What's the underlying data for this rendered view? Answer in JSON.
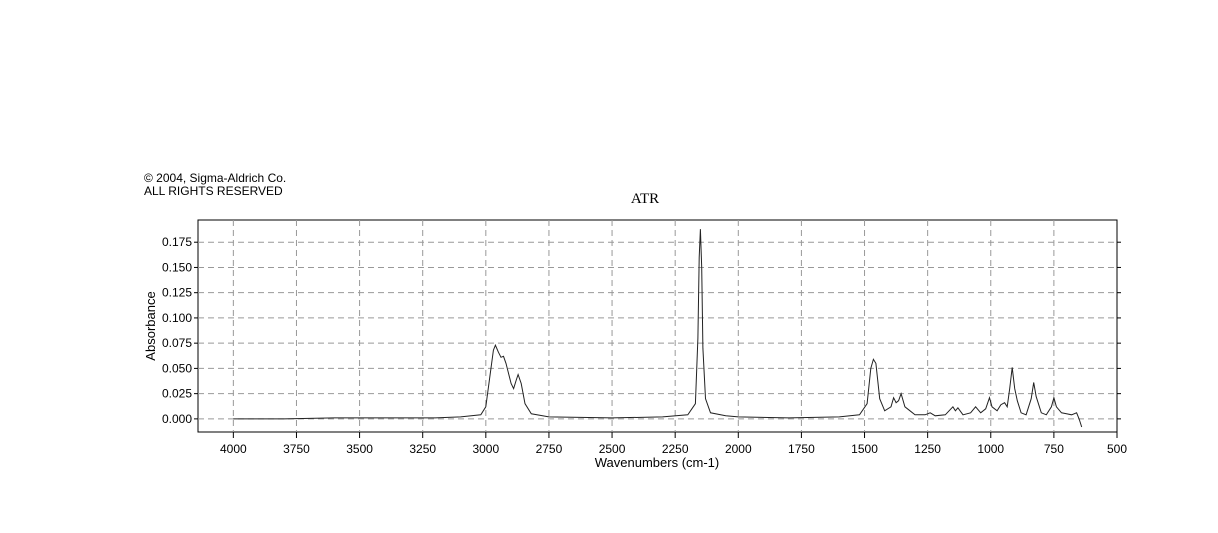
{
  "chart_data": {
    "type": "line",
    "title": "ATR",
    "copyright": [
      "© 2004, Sigma-Aldrich Co.",
      "ALL RIGHTS RESERVED"
    ],
    "xlabel": "Wavenumbers (cm-1)",
    "ylabel": "Absorbance",
    "xlim": [
      4140,
      500
    ],
    "ylim": [
      -0.013,
      0.197
    ],
    "xticks": [
      4000,
      3750,
      3500,
      3250,
      3000,
      2750,
      2500,
      2250,
      2000,
      1750,
      1500,
      1250,
      1000,
      750,
      500
    ],
    "yticks": [
      {
        "value": 0,
        "label": "0.000"
      },
      {
        "value": 0.025,
        "label": "0.025"
      },
      {
        "value": 0.05,
        "label": "0.050"
      },
      {
        "value": 0.075,
        "label": "0.075"
      },
      {
        "value": 0.1,
        "label": "0.100"
      },
      {
        "value": 0.125,
        "label": "0.125"
      },
      {
        "value": 0.15,
        "label": "0.150"
      },
      {
        "value": 0.175,
        "label": "0.175"
      }
    ],
    "grid": true,
    "color": "#222222",
    "x": [
      4000,
      3800,
      3600,
      3400,
      3200,
      3100,
      3020,
      3000,
      2985,
      2970,
      2962,
      2950,
      2940,
      2930,
      2920,
      2900,
      2890,
      2880,
      2872,
      2860,
      2845,
      2820,
      2750,
      2500,
      2300,
      2200,
      2170,
      2160,
      2155,
      2150,
      2145,
      2140,
      2130,
      2110,
      2050,
      2000,
      1800,
      1600,
      1520,
      1490,
      1475,
      1465,
      1455,
      1440,
      1420,
      1395,
      1385,
      1375,
      1365,
      1355,
      1340,
      1320,
      1300,
      1260,
      1240,
      1220,
      1180,
      1150,
      1140,
      1130,
      1110,
      1080,
      1060,
      1040,
      1020,
      1005,
      995,
      975,
      960,
      945,
      935,
      925,
      915,
      905,
      895,
      880,
      860,
      840,
      830,
      820,
      800,
      780,
      760,
      750,
      740,
      720,
      700,
      680,
      660,
      650,
      640
    ],
    "values": [
      0,
      0,
      0.001,
      0.001,
      0.001,
      0.002,
      0.004,
      0.012,
      0.04,
      0.068,
      0.073,
      0.066,
      0.061,
      0.062,
      0.055,
      0.035,
      0.03,
      0.038,
      0.044,
      0.035,
      0.015,
      0.005,
      0.002,
      0.001,
      0.002,
      0.004,
      0.015,
      0.08,
      0.16,
      0.188,
      0.15,
      0.07,
      0.02,
      0.006,
      0.003,
      0.002,
      0.001,
      0.002,
      0.004,
      0.015,
      0.05,
      0.059,
      0.055,
      0.02,
      0.008,
      0.012,
      0.021,
      0.016,
      0.018,
      0.025,
      0.012,
      0.008,
      0.004,
      0.004,
      0.006,
      0.003,
      0.004,
      0.012,
      0.008,
      0.011,
      0.004,
      0.006,
      0.012,
      0.006,
      0.01,
      0.021,
      0.012,
      0.008,
      0.014,
      0.016,
      0.012,
      0.03,
      0.051,
      0.03,
      0.018,
      0.006,
      0.004,
      0.02,
      0.036,
      0.022,
      0.006,
      0.004,
      0.012,
      0.021,
      0.012,
      0.006,
      0.005,
      0.004,
      0.006,
      0,
      -0.008
    ]
  }
}
